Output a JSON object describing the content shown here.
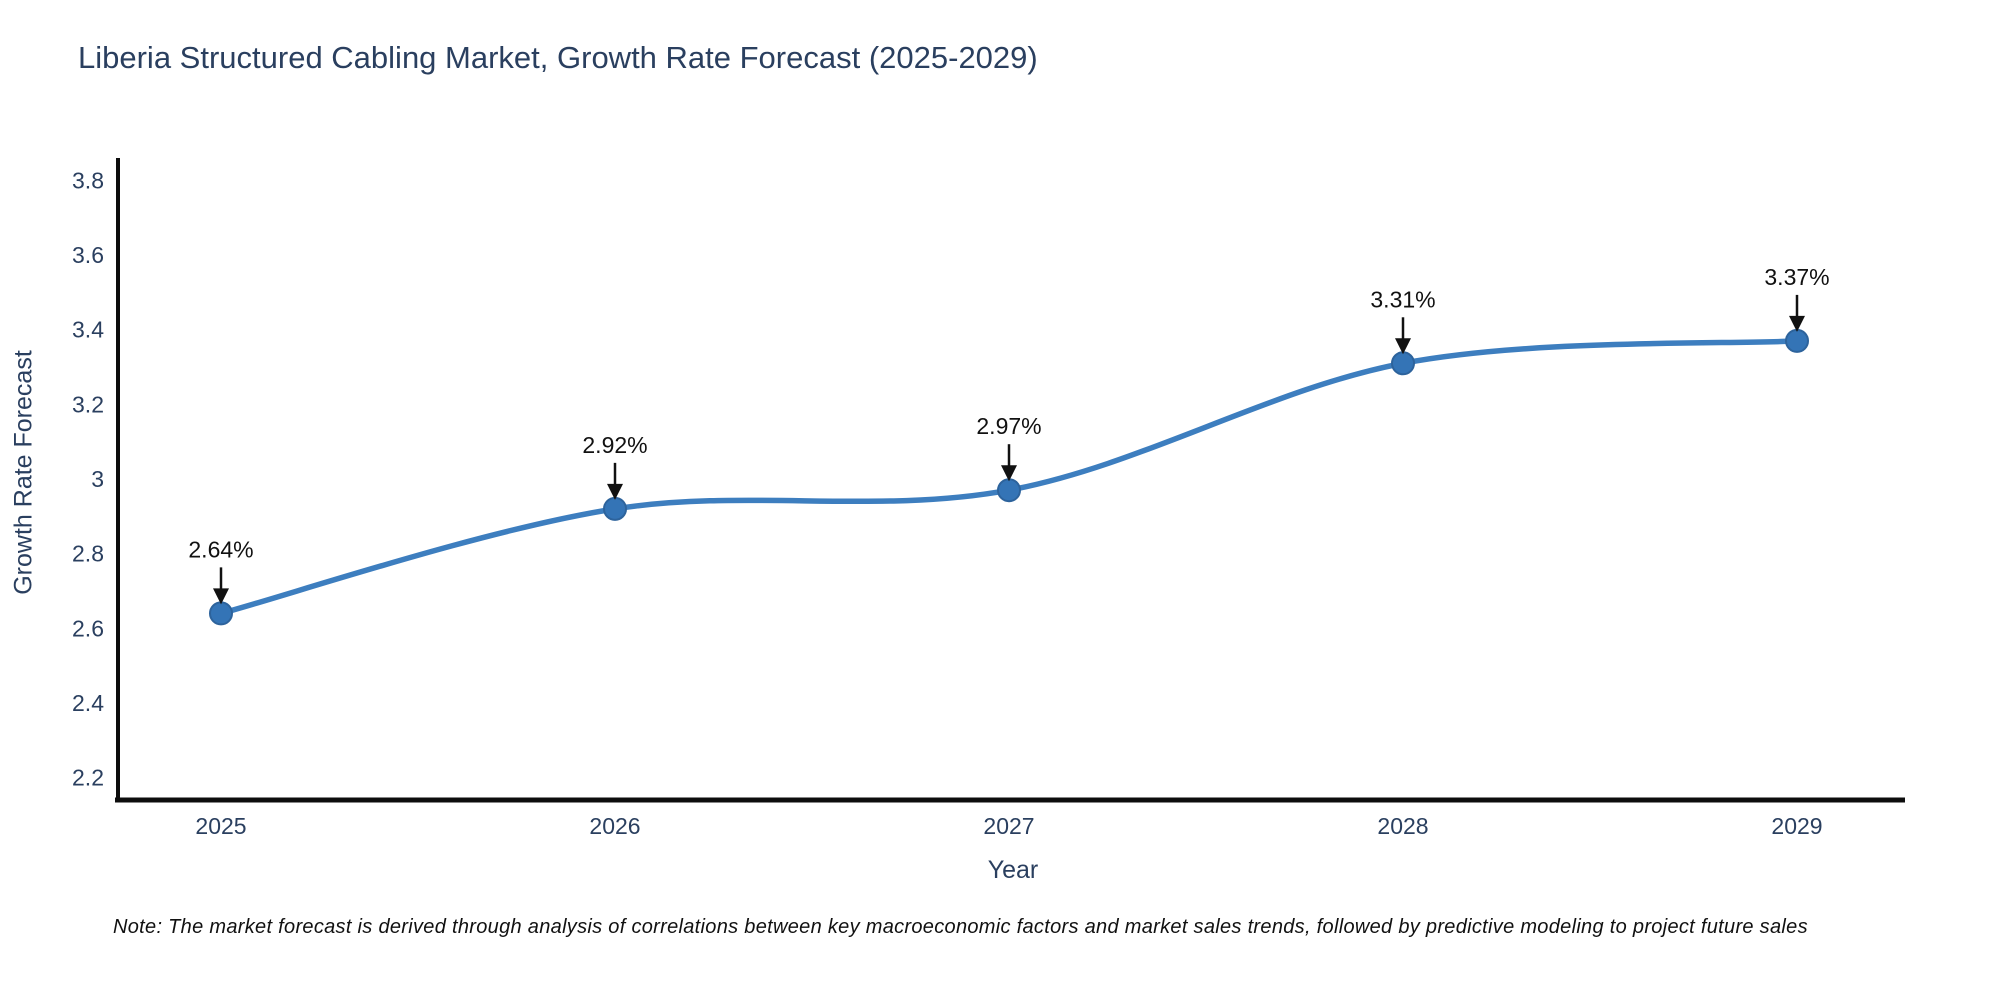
{
  "chart_data": {
    "type": "line",
    "title": "Liberia Structured Cabling Market, Growth Rate Forecast (2025-2029)",
    "xlabel": "Year",
    "ylabel": "Growth Rate Forecast",
    "x": [
      2025,
      2026,
      2027,
      2028,
      2029
    ],
    "series": [
      {
        "name": "Growth Rate Forecast",
        "values": [
          2.64,
          2.92,
          2.97,
          3.31,
          3.37
        ]
      }
    ],
    "point_labels": [
      "2.64%",
      "2.92%",
      "2.97%",
      "3.31%",
      "3.37%"
    ],
    "yticks": [
      2.2,
      2.4,
      2.6,
      2.8,
      3,
      3.2,
      3.4,
      3.6,
      3.8
    ],
    "ylim": [
      2.14,
      3.86
    ],
    "line_shape": "spline",
    "grid": false,
    "legend": "none",
    "markers": true,
    "annotations_arrows": true,
    "colors": {
      "line": "#3d7ebf",
      "marker_fill": "#3474b6",
      "marker_edge": "#2d639c",
      "annotation_text": "#111111",
      "arrow": "#111111",
      "axis_line": "#0d0d0d",
      "tick_text": "#2a3f5f",
      "title_text": "#2a3f5f"
    }
  },
  "note": {
    "text": "Note: The market forecast is derived through analysis of correlations between key macroeconomic factors and market sales trends, followed by predictive modeling to project future sales"
  }
}
